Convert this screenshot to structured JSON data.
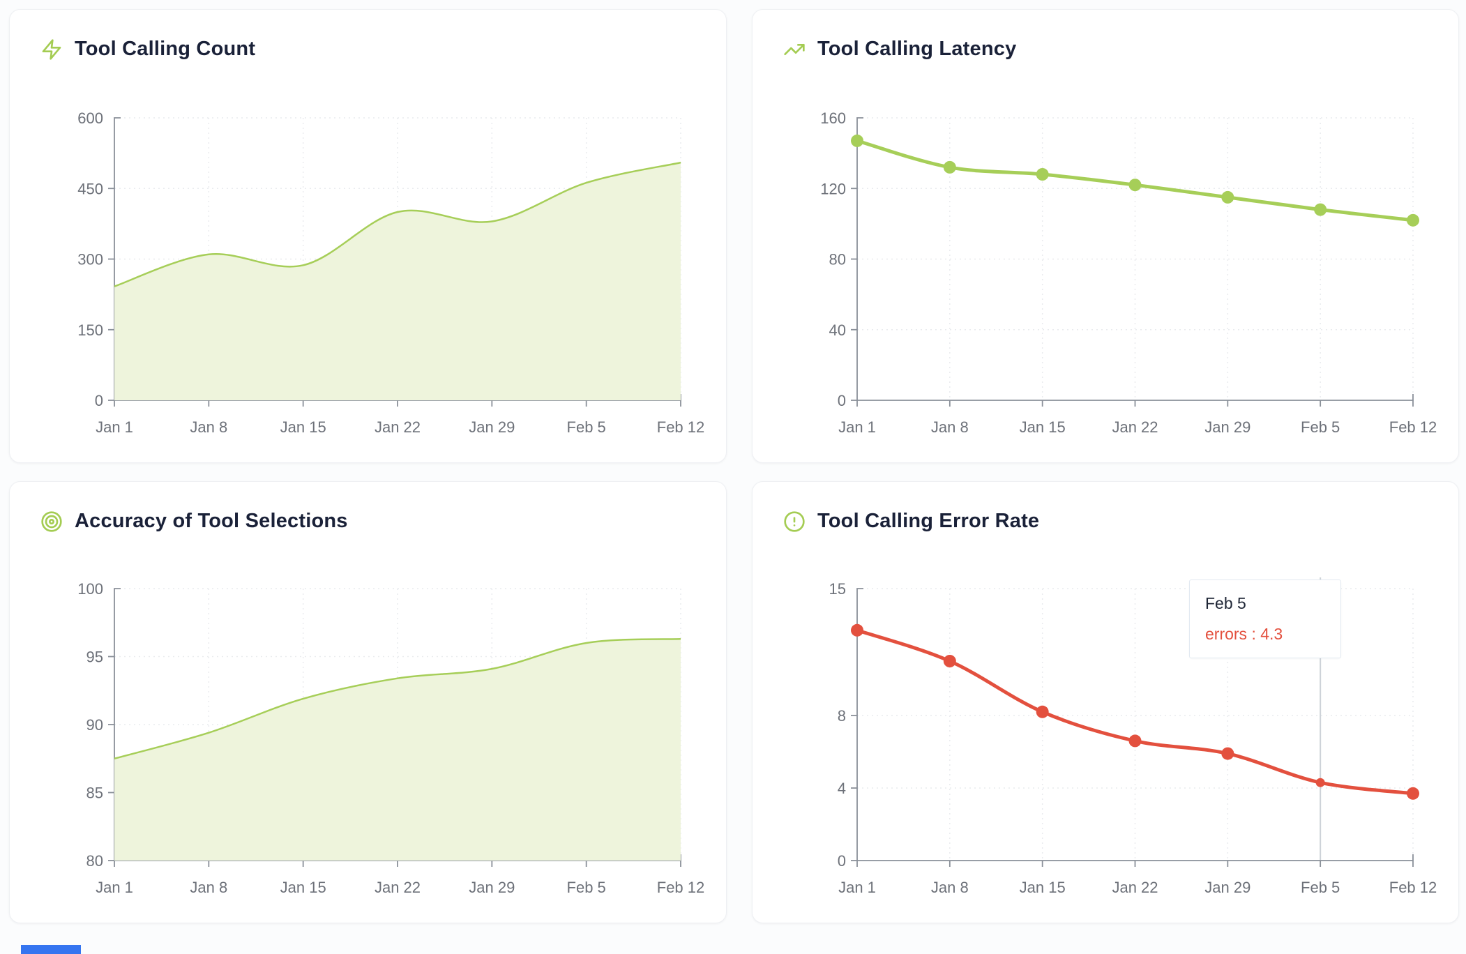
{
  "page": {
    "background": "#fbfcfd",
    "bottom_bar_color": "#3575f0"
  },
  "chart_data": [
    {
      "type": "area",
      "title": "Tool Calling Count",
      "icon": "zap-icon",
      "categories": [
        "Jan 1",
        "Jan 8",
        "Jan 15",
        "Jan 22",
        "Jan 29",
        "Feb 5",
        "Feb 12"
      ],
      "values": [
        242,
        310,
        287,
        400,
        380,
        462,
        505
      ],
      "ylim": [
        0,
        600
      ],
      "y_ticks": [
        0,
        150,
        300,
        450,
        600
      ],
      "line_color": "#a6ce58",
      "fill_color": "#eef4dc",
      "grid": true,
      "legend": "none"
    },
    {
      "type": "line",
      "title": "Tool Calling Latency",
      "icon": "trending-up-icon",
      "categories": [
        "Jan 1",
        "Jan 8",
        "Jan 15",
        "Jan 22",
        "Jan 29",
        "Feb 5",
        "Feb 12"
      ],
      "values": [
        147,
        132,
        128,
        122,
        115,
        108,
        102
      ],
      "ylim": [
        0,
        160
      ],
      "y_ticks": [
        0,
        40,
        80,
        120,
        160
      ],
      "line_color": "#a6ce58",
      "show_points": true,
      "grid": true,
      "legend": "none"
    },
    {
      "type": "area",
      "title": "Accuracy of Tool Selections",
      "icon": "target-icon",
      "categories": [
        "Jan 1",
        "Jan 8",
        "Jan 15",
        "Jan 22",
        "Jan 29",
        "Feb 5",
        "Feb 12"
      ],
      "values": [
        87.5,
        89.4,
        91.9,
        93.4,
        94.1,
        96,
        96.3
      ],
      "ylim": [
        80,
        100
      ],
      "y_ticks": [
        80,
        85,
        90,
        95,
        100
      ],
      "line_color": "#a6ce58",
      "fill_color": "#eef4dc",
      "grid": true,
      "legend": "none"
    },
    {
      "type": "line",
      "title": "Tool Calling Error Rate",
      "icon": "alert-circle-icon",
      "categories": [
        "Jan 1",
        "Jan 8",
        "Jan 15",
        "Jan 22",
        "Jan 29",
        "Feb 5",
        "Feb 12"
      ],
      "values": [
        12.7,
        11,
        8.2,
        6.6,
        5.9,
        4.3,
        3.7
      ],
      "ylim": [
        0,
        15
      ],
      "y_ticks": [
        0,
        4,
        8,
        15
      ],
      "line_color": "#e3503e",
      "show_points": true,
      "grid": true,
      "legend": "none",
      "tooltip": {
        "index": 5,
        "date": "Feb 5",
        "value_text": "errors : 4.3",
        "value_color": "#e3503e"
      }
    }
  ]
}
